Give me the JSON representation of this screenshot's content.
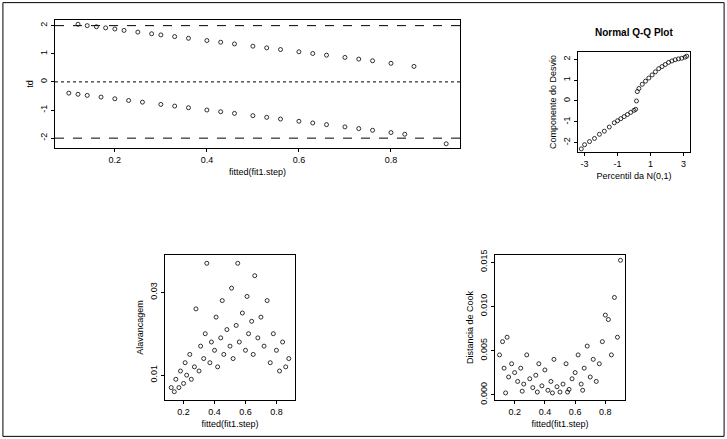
{
  "chart_data": [
    {
      "type": "scatter",
      "xlabel": "fitted(fit1.step)",
      "ylabel": "td",
      "xlim": [
        0.07,
        0.95
      ],
      "ylim": [
        -2.35,
        2.2
      ],
      "xticks": [
        0.2,
        0.4,
        0.6,
        0.8
      ],
      "yticks": [
        -2,
        -1,
        0,
        1,
        2
      ],
      "marker": "circle-open",
      "color": "#000000",
      "hlines": [
        {
          "value": -2,
          "line_style": "dashed"
        },
        {
          "value": 0,
          "line_style": "dotted"
        },
        {
          "value": 2,
          "line_style": "dashed"
        }
      ],
      "series": [
        {
          "x": [
            0.12,
            0.14,
            0.16,
            0.18,
            0.2,
            0.22,
            0.25,
            0.28,
            0.3,
            0.33,
            0.36,
            0.4,
            0.43,
            0.46,
            0.5,
            0.53,
            0.56,
            0.6,
            0.63,
            0.66,
            0.7,
            0.73,
            0.76,
            0.8,
            0.85,
            0.1,
            0.12,
            0.14,
            0.17,
            0.2,
            0.23,
            0.26,
            0.3,
            0.33,
            0.36,
            0.4,
            0.43,
            0.46,
            0.5,
            0.53,
            0.56,
            0.6,
            0.63,
            0.66,
            0.7,
            0.73,
            0.76,
            0.8,
            0.83,
            0.92
          ],
          "y": [
            2.05,
            2.0,
            1.96,
            1.92,
            1.88,
            1.83,
            1.77,
            1.71,
            1.67,
            1.61,
            1.55,
            1.47,
            1.41,
            1.35,
            1.27,
            1.21,
            1.15,
            1.07,
            1.01,
            0.95,
            0.87,
            0.81,
            0.75,
            0.66,
            0.55,
            -0.4,
            -0.44,
            -0.48,
            -0.54,
            -0.6,
            -0.66,
            -0.72,
            -0.8,
            -0.86,
            -0.92,
            -1.0,
            -1.06,
            -1.12,
            -1.2,
            -1.26,
            -1.32,
            -1.4,
            -1.46,
            -1.52,
            -1.6,
            -1.66,
            -1.72,
            -1.8,
            -1.86,
            -2.2
          ]
        }
      ]
    },
    {
      "type": "scatter",
      "title": "Normal Q-Q Plot",
      "xlabel": "Percentil da N(0,1)",
      "ylabel": "Componente do Desvio",
      "xlim": [
        -3.4,
        3.4
      ],
      "ylim": [
        -2.45,
        2.35
      ],
      "xticks": [
        -3,
        -1,
        1,
        3
      ],
      "yticks": [
        -2,
        -1,
        0,
        1,
        2
      ],
      "marker": "circle-open",
      "color": "#000000",
      "series": [
        {
          "x": [
            -3.2,
            -3.0,
            -2.7,
            -2.4,
            -2.1,
            -1.8,
            -1.5,
            -1.2,
            -1.0,
            -0.8,
            -0.6,
            -0.4,
            -0.2,
            0.0,
            0.1,
            0.15,
            0.2,
            0.3,
            0.5,
            0.7,
            0.9,
            1.1,
            1.3,
            1.5,
            1.7,
            1.9,
            2.1,
            2.3,
            2.5,
            2.7,
            2.9,
            3.1,
            3.2
          ],
          "y": [
            -2.3,
            -2.1,
            -1.95,
            -1.8,
            -1.6,
            -1.45,
            -1.25,
            -1.05,
            -0.95,
            -0.85,
            -0.75,
            -0.65,
            -0.55,
            -0.45,
            -0.4,
            0.0,
            0.45,
            0.6,
            0.8,
            0.95,
            1.1,
            1.25,
            1.4,
            1.55,
            1.65,
            1.75,
            1.85,
            1.92,
            1.98,
            2.02,
            2.05,
            2.1,
            2.15
          ]
        }
      ]
    },
    {
      "type": "scatter",
      "xlabel": "fitted(fit1.step)",
      "ylabel": "Alavancagem",
      "xlim": [
        0.08,
        0.92
      ],
      "ylim": [
        0.004,
        0.039
      ],
      "xticks": [
        0.2,
        0.4,
        0.6,
        0.8
      ],
      "yticks": [
        0.01,
        0.03
      ],
      "marker": "circle-open",
      "color": "#000000",
      "series": [
        {
          "x": [
            0.12,
            0.14,
            0.15,
            0.17,
            0.18,
            0.2,
            0.21,
            0.22,
            0.24,
            0.25,
            0.27,
            0.28,
            0.3,
            0.31,
            0.33,
            0.34,
            0.35,
            0.37,
            0.38,
            0.4,
            0.41,
            0.42,
            0.44,
            0.45,
            0.46,
            0.48,
            0.5,
            0.51,
            0.52,
            0.54,
            0.55,
            0.56,
            0.58,
            0.6,
            0.61,
            0.62,
            0.64,
            0.65,
            0.66,
            0.68,
            0.7,
            0.72,
            0.74,
            0.76,
            0.78,
            0.8,
            0.82,
            0.84,
            0.86,
            0.88
          ],
          "y": [
            0.007,
            0.006,
            0.009,
            0.007,
            0.011,
            0.008,
            0.013,
            0.01,
            0.015,
            0.009,
            0.012,
            0.026,
            0.011,
            0.017,
            0.014,
            0.02,
            0.037,
            0.013,
            0.018,
            0.016,
            0.024,
            0.012,
            0.019,
            0.028,
            0.015,
            0.021,
            0.017,
            0.031,
            0.014,
            0.022,
            0.037,
            0.018,
            0.025,
            0.016,
            0.029,
            0.02,
            0.023,
            0.015,
            0.034,
            0.019,
            0.024,
            0.017,
            0.028,
            0.013,
            0.02,
            0.016,
            0.011,
            0.018,
            0.012,
            0.014
          ]
        }
      ]
    },
    {
      "type": "scatter",
      "xlabel": "fitted(fit1.step)",
      "ylabel": "Distancia de Cook",
      "xlim": [
        0.07,
        0.93
      ],
      "ylim": [
        -0.0006,
        0.0158
      ],
      "xticks": [
        0.2,
        0.4,
        0.6,
        0.8
      ],
      "yticks": [
        {
          "value": 0,
          "label": "0.000"
        },
        {
          "value": 0.005,
          "label": "0.005"
        },
        {
          "value": 0.01,
          "label": "0.010"
        },
        {
          "value": 0.015,
          "label": "0.015"
        }
      ],
      "marker": "circle-open",
      "color": "#000000",
      "series": [
        {
          "x": [
            0.1,
            0.12,
            0.13,
            0.15,
            0.16,
            0.18,
            0.2,
            0.22,
            0.24,
            0.26,
            0.28,
            0.3,
            0.32,
            0.34,
            0.36,
            0.38,
            0.4,
            0.42,
            0.44,
            0.46,
            0.48,
            0.5,
            0.52,
            0.54,
            0.56,
            0.58,
            0.6,
            0.62,
            0.64,
            0.66,
            0.68,
            0.7,
            0.72,
            0.74,
            0.76,
            0.78,
            0.8,
            0.82,
            0.84,
            0.86,
            0.88,
            0.9,
            0.14,
            0.25,
            0.45,
            0.55,
            0.65,
            0.35
          ],
          "y": [
            0.0045,
            0.006,
            0.003,
            0.0065,
            0.002,
            0.0035,
            0.0025,
            0.0015,
            0.003,
            0.0012,
            0.0045,
            0.0018,
            0.0008,
            0.0022,
            0.0035,
            0.001,
            0.0028,
            0.0005,
            0.0015,
            0.004,
            0.0009,
            0.0003,
            0.0012,
            0.0035,
            0.0006,
            0.0018,
            0.0025,
            0.0045,
            0.0012,
            0.003,
            0.0055,
            0.002,
            0.004,
            0.0015,
            0.0035,
            0.006,
            0.009,
            0.0085,
            0.0045,
            0.011,
            0.0065,
            0.0152,
            0.0002,
            0.0004,
            0.0002,
            0.0003,
            0.0005,
            0.0003
          ]
        }
      ]
    }
  ]
}
